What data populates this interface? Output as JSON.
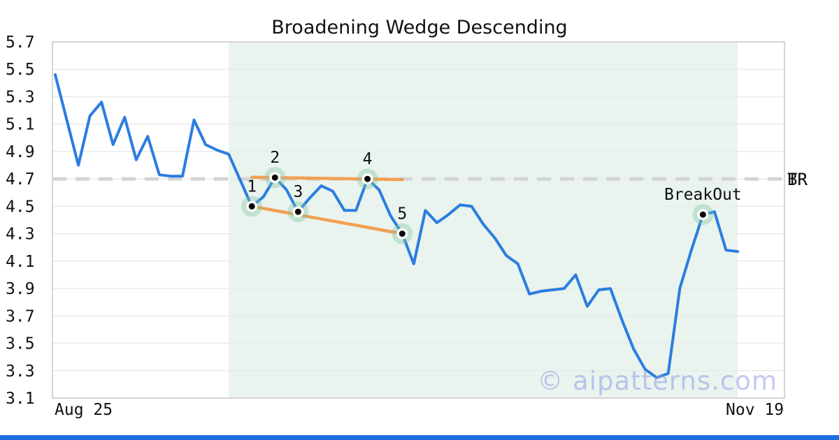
{
  "title": "Broadening Wedge Descending",
  "watermark": "© aipatterns.com",
  "colors": {
    "price_line": "#2b7de0",
    "trend_line": "#f2a052",
    "region_fill": "#e9f4ee",
    "halo": "rgba(130,198,160,0.38)",
    "marker_ring": "#ffffff",
    "marker_dot": "#0a0a0a",
    "dashed_level": "#d4d4d4",
    "grid": "#eaeaea",
    "spine": "#c9c9c9",
    "text": "#111111",
    "bottom_bar": "#1d6fe0"
  },
  "chart_data": {
    "type": "line",
    "title": "Broadening Wedge Descending",
    "x_axis": {
      "start_label": "Aug 25",
      "end_label": "Nov 19"
    },
    "ylim": [
      3.1,
      5.7
    ],
    "yticks": [
      5.7,
      5.5,
      5.3,
      5.1,
      4.9,
      4.7,
      4.5,
      4.3,
      4.1,
      3.9,
      3.7,
      3.5,
      3.3,
      3.1
    ],
    "grid": "horizontal",
    "values": [
      5.46,
      5.13,
      4.8,
      5.16,
      5.26,
      4.95,
      5.15,
      4.84,
      5.01,
      4.73,
      4.72,
      4.72,
      5.13,
      4.95,
      4.91,
      4.88,
      4.69,
      4.5,
      4.57,
      4.71,
      4.62,
      4.46,
      4.56,
      4.65,
      4.61,
      4.47,
      4.47,
      4.7,
      4.62,
      4.43,
      4.3,
      4.08,
      4.47,
      4.38,
      4.44,
      4.51,
      4.5,
      4.37,
      4.27,
      4.14,
      4.08,
      3.86,
      3.88,
      3.89,
      3.9,
      4.0,
      3.77,
      3.89,
      3.9,
      3.67,
      3.46,
      3.31,
      3.25,
      3.28,
      3.9,
      4.18,
      4.44,
      4.46,
      4.18,
      4.17
    ],
    "pattern": {
      "name": "Broadening Wedge Descending",
      "region": {
        "start_index": 15,
        "end_index": 59
      },
      "points": [
        {
          "label": "1",
          "index": 17,
          "value": 4.5
        },
        {
          "label": "2",
          "index": 19,
          "value": 4.71
        },
        {
          "label": "3",
          "index": 21,
          "value": 4.46
        },
        {
          "label": "4",
          "index": 27,
          "value": 4.7
        },
        {
          "label": "5",
          "index": 30,
          "value": 4.3
        }
      ],
      "breakout": {
        "label": "BreakOut",
        "index": 56,
        "value": 4.44
      },
      "trendlines": [
        {
          "from_index": 17,
          "from_value": 4.712,
          "to_index": 30,
          "to_value": 4.695
        },
        {
          "from_index": 17,
          "from_value": 4.5,
          "to_index": 30,
          "to_value": 4.3
        }
      ],
      "resistance_level": {
        "value": 4.7,
        "labels": [
          "TR",
          "BR"
        ]
      }
    }
  }
}
